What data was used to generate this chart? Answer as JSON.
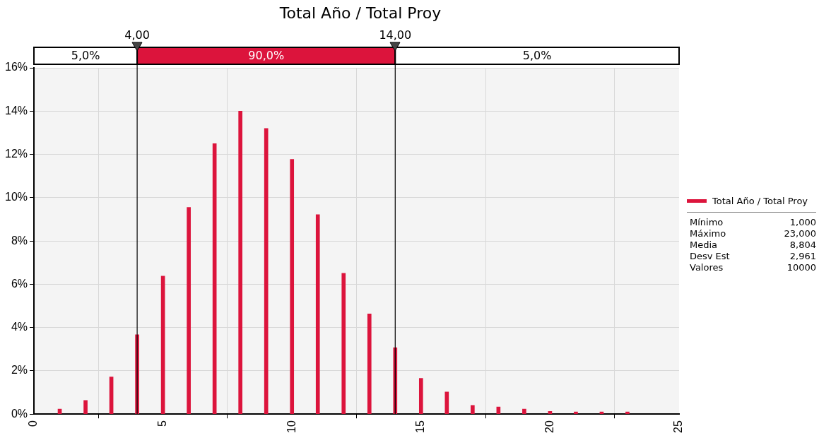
{
  "chart_data": {
    "type": "bar",
    "title": "Total Año / Total Proy",
    "x": [
      1,
      2,
      3,
      4,
      5,
      6,
      7,
      8,
      9,
      10,
      11,
      12,
      13,
      14,
      15,
      16,
      17,
      18,
      19,
      20,
      21,
      22,
      23
    ],
    "series": [
      {
        "name": "Total Año / Total Proy",
        "color": "#dc143c",
        "values": [
          0.23,
          0.63,
          1.72,
          3.67,
          6.38,
          9.55,
          12.5,
          14.0,
          13.2,
          11.77,
          9.22,
          6.51,
          4.63,
          3.07,
          1.65,
          1.02,
          0.4,
          0.33,
          0.23,
          0.13,
          0.1,
          0.1,
          0.1
        ]
      }
    ],
    "xlim": [
      0,
      25
    ],
    "xticks": [
      0,
      5,
      10,
      15,
      20,
      25
    ],
    "ylim": [
      0,
      16
    ],
    "yticks": [
      {
        "value": 0,
        "label": "0%"
      },
      {
        "value": 2,
        "label": "2%"
      },
      {
        "value": 4,
        "label": "4%"
      },
      {
        "value": 6,
        "label": "6%"
      },
      {
        "value": 8,
        "label": "8%"
      },
      {
        "value": 10,
        "label": "10%"
      },
      {
        "value": 12,
        "label": "12%"
      },
      {
        "value": 14,
        "label": "14%"
      },
      {
        "value": 16,
        "label": "16%"
      }
    ],
    "grid": true,
    "legend": "right",
    "ref_lines": [
      {
        "axis": "x",
        "value": 4,
        "label": "4,00",
        "color": "#000000"
      },
      {
        "axis": "x",
        "value": 14,
        "label": "14,00",
        "color": "#000000"
      }
    ],
    "annotations": [
      "5,0%",
      "90,0%",
      "5,0%",
      "Mínimo",
      "1,000",
      "Máximo",
      "23,000",
      "Media",
      "8,804",
      "Desv Est",
      "2,961",
      "Valores",
      "10000"
    ]
  }
}
